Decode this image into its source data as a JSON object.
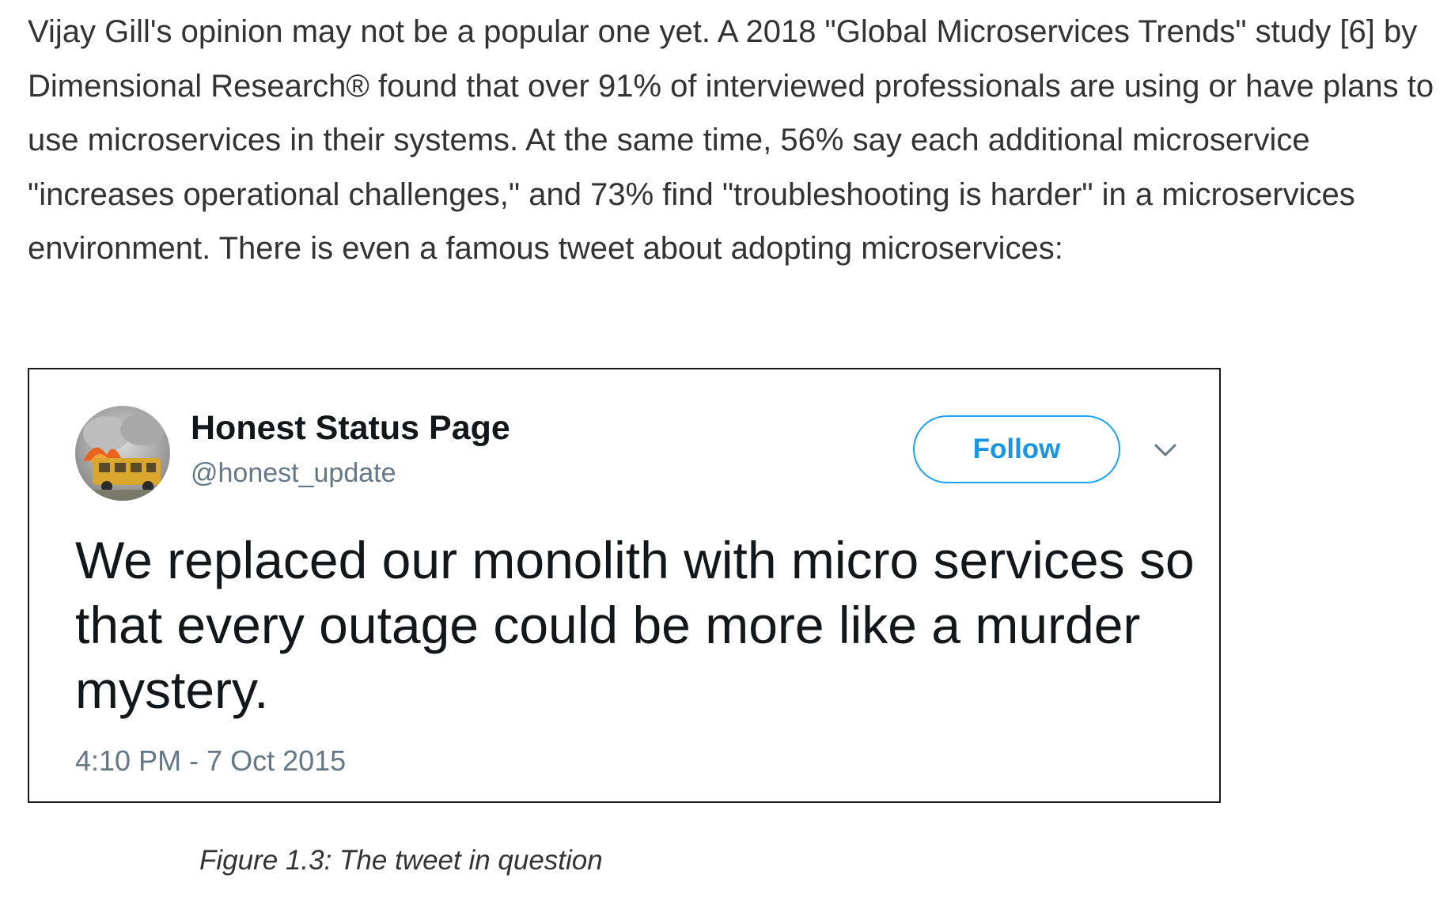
{
  "body": {
    "paragraph": "Vijay Gill's opinion may not be a popular one yet. A 2018 \"Global Microservices Trends\" study [6] by Dimensional Research® found that over 91% of interviewed professionals are using or have plans to use microservices in their systems. At the same time, 56% say each additional microservice \"increases operational challenges,\" and 73% find \"troubleshooting is harder\" in a microservices environment. There is even a famous tweet about adopting microservices:"
  },
  "tweet": {
    "avatar_icon": "avatar-photo",
    "display_name": "Honest Status Page",
    "handle": "@honest_update",
    "follow_label": "Follow",
    "menu_icon": "chevron-down-icon",
    "text": "We replaced our monolith with micro services so that every outage could be more like a murder mystery.",
    "timestamp": "4:10 PM - 7 Oct 2015",
    "accent_color": "#1da1f2"
  },
  "figure": {
    "caption": "Figure 1.3: The tweet in question"
  }
}
